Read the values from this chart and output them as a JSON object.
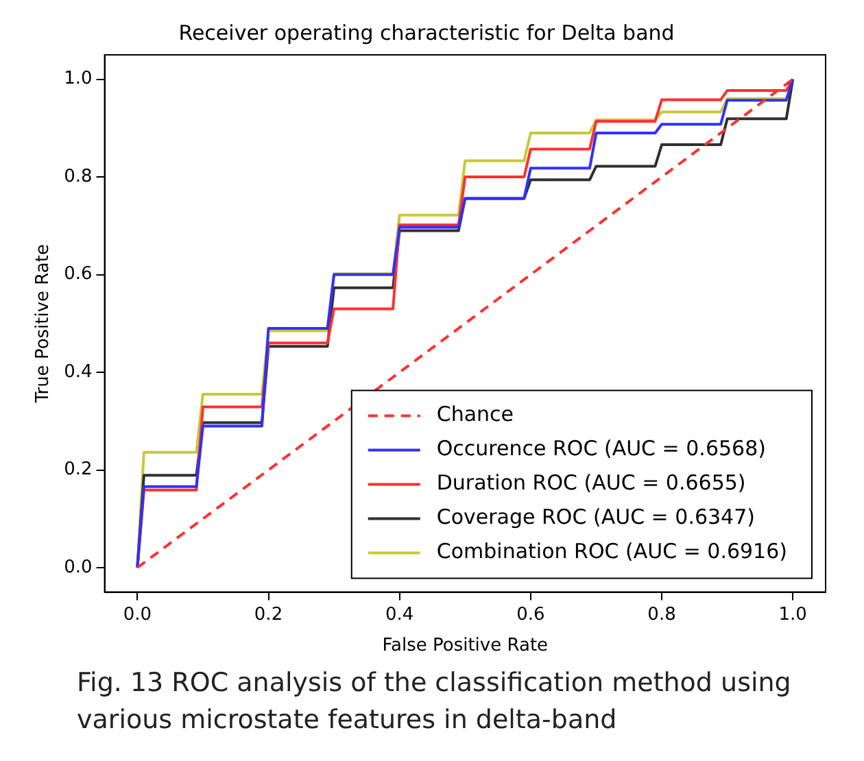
{
  "chart_data": {
    "type": "line",
    "title": "Receiver operating characteristic for Delta band",
    "xlabel": "False Positive Rate",
    "ylabel": "True Positive Rate",
    "x": [
      0,
      0.01,
      0.09,
      0.1,
      0.19,
      0.2,
      0.29,
      0.3,
      0.39,
      0.4,
      0.49,
      0.5,
      0.59,
      0.6,
      0.69,
      0.7,
      0.79,
      0.8,
      0.89,
      0.9,
      0.99,
      1.0
    ],
    "series": [
      {
        "name": "Chance",
        "color": "#ff3030",
        "x": [
          0,
          1
        ],
        "values": [
          0,
          1
        ],
        "line_style": "dashed"
      },
      {
        "name": "Occurence ROC (AUC = 0.6568)",
        "color": "#3030ff",
        "values": [
          0,
          0.166,
          0.166,
          0.29,
          0.29,
          0.49,
          0.49,
          0.6,
          0.6,
          0.697,
          0.697,
          0.756,
          0.756,
          0.818,
          0.818,
          0.89,
          0.89,
          0.908,
          0.908,
          0.957,
          0.957,
          1.0
        ]
      },
      {
        "name": "Duration ROC (AUC = 0.6655)",
        "color": "#ff3030",
        "values": [
          0,
          0.159,
          0.159,
          0.329,
          0.329,
          0.46,
          0.46,
          0.53,
          0.53,
          0.702,
          0.702,
          0.8,
          0.8,
          0.857,
          0.857,
          0.914,
          0.914,
          0.958,
          0.958,
          0.977,
          0.977,
          1.0
        ]
      },
      {
        "name": "Coverage ROC (AUC = 0.6347)",
        "color": "#303030",
        "values": [
          0,
          0.189,
          0.189,
          0.297,
          0.297,
          0.453,
          0.453,
          0.573,
          0.573,
          0.69,
          0.69,
          0.756,
          0.756,
          0.794,
          0.794,
          0.822,
          0.822,
          0.866,
          0.866,
          0.919,
          0.919,
          1.0
        ]
      },
      {
        "name": "Combination ROC (AUC = 0.6916)",
        "color": "#c8c83a",
        "values": [
          0,
          0.236,
          0.236,
          0.355,
          0.355,
          0.485,
          0.485,
          0.602,
          0.602,
          0.722,
          0.722,
          0.833,
          0.833,
          0.89,
          0.89,
          0.917,
          0.917,
          0.933,
          0.933,
          0.96,
          0.96,
          1.0
        ]
      }
    ],
    "xlim": [
      -0.05,
      1.05
    ],
    "ylim": [
      -0.05,
      1.05
    ],
    "xticks": [
      {
        "value": 0,
        "label": "0.0"
      },
      {
        "value": 0.2,
        "label": "0.2"
      },
      {
        "value": 0.4,
        "label": "0.4"
      },
      {
        "value": 0.6,
        "label": "0.6"
      },
      {
        "value": 0.8,
        "label": "0.8"
      },
      {
        "value": 1,
        "label": "1.0"
      }
    ],
    "yticks": [
      {
        "value": 0,
        "label": "0.0"
      },
      {
        "value": 0.2,
        "label": "0.2"
      },
      {
        "value": 0.4,
        "label": "0.4"
      },
      {
        "value": 0.6,
        "label": "0.6"
      },
      {
        "value": 0.8,
        "label": "0.8"
      },
      {
        "value": 1,
        "label": "1.0"
      }
    ],
    "grid": false,
    "legend": "bottom right",
    "marker": "none",
    "annotations": [
      "Fig. 13  ROC analysis of the classification method using various microstate features in delta-band"
    ]
  }
}
